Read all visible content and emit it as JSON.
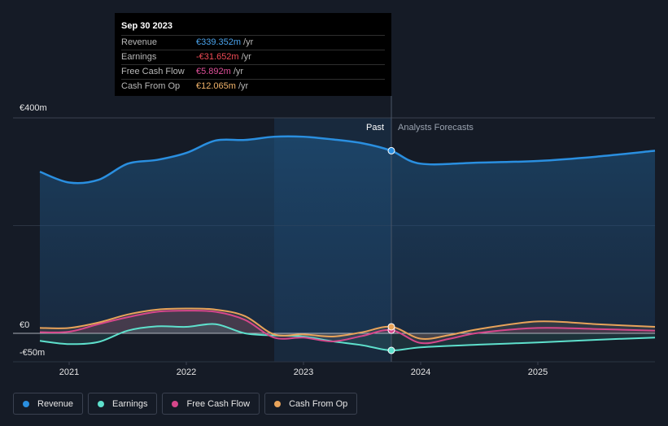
{
  "tooltip": {
    "date": "Sep 30 2023",
    "rows": [
      {
        "label": "Revenue",
        "value": "€339.352m",
        "unit": "/yr",
        "color": "#4aa3ec"
      },
      {
        "label": "Earnings",
        "value": "-€31.652m",
        "unit": "/yr",
        "color": "#f04b55"
      },
      {
        "label": "Free Cash Flow",
        "value": "€5.892m",
        "unit": "/yr",
        "color": "#e0509a"
      },
      {
        "label": "Cash From Op",
        "value": "€12.065m",
        "unit": "/yr",
        "color": "#f2b46b"
      }
    ]
  },
  "legend": [
    {
      "label": "Revenue",
      "color": "#2a8fe0"
    },
    {
      "label": "Earnings",
      "color": "#5ee0cc"
    },
    {
      "label": "Free Cash Flow",
      "color": "#d6478b"
    },
    {
      "label": "Cash From Op",
      "color": "#e8a35a"
    }
  ],
  "chart_data": {
    "type": "area",
    "title": "",
    "xlabel": "",
    "ylabel": "",
    "ylim": [
      -50,
      400
    ],
    "y_ticks": [
      {
        "value": 400,
        "label": "€400m"
      },
      {
        "value": 0,
        "label": "€0"
      },
      {
        "value": -50,
        "label": "-€50m"
      }
    ],
    "x_ticks": [
      {
        "value": 2021,
        "label": "2021"
      },
      {
        "value": 2022,
        "label": "2022"
      },
      {
        "value": 2023,
        "label": "2023"
      },
      {
        "value": 2024,
        "label": "2024"
      },
      {
        "value": 2025,
        "label": "2025"
      }
    ],
    "xlim": [
      2020.5,
      2026.0
    ],
    "past_label": "Past",
    "forecast_label": "Analysts Forecasts",
    "past_end": 2023.75,
    "highlight_start": 2022.75,
    "series": [
      {
        "name": "Revenue",
        "color": "#2a8fe0",
        "x": [
          2020.75,
          2021.0,
          2021.25,
          2021.5,
          2021.75,
          2022.0,
          2022.25,
          2022.5,
          2022.75,
          2023.0,
          2023.25,
          2023.5,
          2023.75,
          2024.0,
          2024.5,
          2025.0,
          2025.5,
          2026.0
        ],
        "y": [
          300,
          280,
          285,
          315,
          322,
          335,
          358,
          359,
          365,
          365,
          360,
          353,
          339,
          315,
          317,
          320,
          328,
          339
        ]
      },
      {
        "name": "Earnings",
        "color": "#5ee0cc",
        "x": [
          2020.75,
          2021.0,
          2021.25,
          2021.5,
          2021.75,
          2022.0,
          2022.25,
          2022.5,
          2022.75,
          2023.0,
          2023.25,
          2023.5,
          2023.75,
          2024.0,
          2024.5,
          2025.0,
          2025.5,
          2026.0
        ],
        "y": [
          -14,
          -20,
          -16,
          5,
          13,
          12,
          17,
          0,
          -4,
          -6,
          -15,
          -22,
          -31.7,
          -26,
          -21,
          -17,
          -12,
          -8
        ]
      },
      {
        "name": "Free Cash Flow",
        "color": "#d6478b",
        "x": [
          2020.75,
          2021.0,
          2021.25,
          2021.5,
          2021.75,
          2022.0,
          2022.25,
          2022.5,
          2022.75,
          2023.0,
          2023.25,
          2023.5,
          2023.75,
          2024.0,
          2024.25,
          2024.5,
          2025.0,
          2025.5,
          2026.0
        ],
        "y": [
          2,
          3,
          17,
          30,
          40,
          42,
          40,
          25,
          -8,
          -8,
          -15,
          -5,
          5.9,
          -18,
          -10,
          1,
          10,
          8,
          5
        ]
      },
      {
        "name": "Cash From Op",
        "color": "#e8a35a",
        "x": [
          2020.75,
          2021.0,
          2021.25,
          2021.5,
          2021.75,
          2022.0,
          2022.25,
          2022.5,
          2022.75,
          2023.0,
          2023.25,
          2023.5,
          2023.75,
          2024.0,
          2024.25,
          2024.5,
          2025.0,
          2025.5,
          2026.0
        ],
        "y": [
          10,
          10,
          20,
          35,
          44,
          46,
          44,
          32,
          -2,
          -2,
          -6,
          2,
          12.1,
          -10,
          -3,
          8,
          22,
          17,
          12
        ]
      }
    ]
  }
}
